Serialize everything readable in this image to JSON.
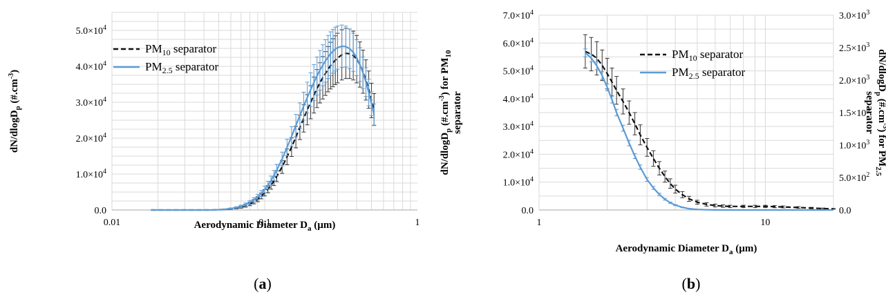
{
  "chart_data": [
    {
      "type": "line",
      "panel_label_open": "(",
      "panel_label_letter": "a",
      "panel_label_close": ")",
      "x_scale": "log",
      "xlim": [
        0.01,
        1
      ],
      "ylim": [
        0,
        55000
      ],
      "x_ticks": [
        "0.01",
        "0.1",
        "1"
      ],
      "y_ticks": [
        {
          "v": 0,
          "mant": "0.0",
          "exp": ""
        },
        {
          "v": 10000,
          "mant": "1.0×10",
          "exp": "4"
        },
        {
          "v": 20000,
          "mant": "2.0×10",
          "exp": "4"
        },
        {
          "v": 30000,
          "mant": "3.0×10",
          "exp": "4"
        },
        {
          "v": 40000,
          "mant": "4.0×10",
          "exp": "4"
        },
        {
          "v": 50000,
          "mant": "5.0×10",
          "exp": "4"
        }
      ],
      "xlabel": {
        "pre": "Aerodynamic Diameter D",
        "sub": "a",
        "post": " (µm)"
      },
      "ylabel": {
        "p1": "dN/dlogD",
        "sub": "p",
        "p2": " (#.cm",
        "sup": "-3",
        "p3": ")"
      },
      "grid": true,
      "legend_position": "top-left",
      "series": [
        {
          "legend_pre": "PM",
          "legend_sub": "10",
          "legend_post": " separator",
          "color": "#111111",
          "dashed": true,
          "x": [
            0.018,
            0.02,
            0.025,
            0.03,
            0.035,
            0.04,
            0.045,
            0.05,
            0.055,
            0.06,
            0.065,
            0.07,
            0.075,
            0.08,
            0.085,
            0.09,
            0.095,
            0.1,
            0.105,
            0.11,
            0.115,
            0.12,
            0.13,
            0.14,
            0.15,
            0.16,
            0.17,
            0.18,
            0.19,
            0.2,
            0.21,
            0.22,
            0.23,
            0.24,
            0.25,
            0.26,
            0.27,
            0.28,
            0.29,
            0.3,
            0.32,
            0.34,
            0.36,
            0.38,
            0.4,
            0.42,
            0.44,
            0.46,
            0.48,
            0.5,
            0.52
          ],
          "y": [
            0,
            0,
            0,
            0,
            0,
            0,
            0,
            50,
            150,
            300,
            500,
            800,
            1200,
            1700,
            2300,
            3000,
            3900,
            4800,
            5800,
            6900,
            8100,
            9400,
            12000,
            14800,
            17500,
            20300,
            23000,
            25500,
            27900,
            30000,
            32000,
            33800,
            35400,
            36800,
            38000,
            39200,
            40200,
            41000,
            41700,
            42300,
            43200,
            43600,
            43500,
            43000,
            42000,
            40500,
            38500,
            36200,
            33500,
            30500,
            28000
          ],
          "err": [
            0,
            0,
            0,
            0,
            0,
            0,
            0,
            50,
            100,
            150,
            200,
            300,
            400,
            500,
            600,
            700,
            800,
            900,
            1000,
            1100,
            1300,
            1500,
            1800,
            2200,
            2600,
            3000,
            3400,
            3800,
            4200,
            4600,
            5000,
            5300,
            5600,
            5900,
            6100,
            6300,
            6500,
            6700,
            6800,
            6900,
            7000,
            7000,
            6900,
            6800,
            6600,
            6300,
            6000,
            5600,
            5200,
            4800,
            4400
          ]
        },
        {
          "legend_pre": "PM",
          "legend_sub": "2.5",
          "legend_post": " separator",
          "color": "#5b9bd5",
          "dashed": false,
          "x": [
            0.018,
            0.02,
            0.025,
            0.03,
            0.035,
            0.04,
            0.045,
            0.05,
            0.055,
            0.06,
            0.065,
            0.07,
            0.075,
            0.08,
            0.085,
            0.09,
            0.095,
            0.1,
            0.105,
            0.11,
            0.115,
            0.12,
            0.13,
            0.14,
            0.15,
            0.16,
            0.17,
            0.18,
            0.19,
            0.2,
            0.21,
            0.22,
            0.23,
            0.24,
            0.25,
            0.26,
            0.27,
            0.28,
            0.29,
            0.3,
            0.32,
            0.34,
            0.36,
            0.38,
            0.4,
            0.42,
            0.44,
            0.46,
            0.48,
            0.5,
            0.52
          ],
          "y": [
            0,
            0,
            0,
            0,
            0,
            0,
            0,
            80,
            200,
            400,
            650,
            1000,
            1500,
            2100,
            2800,
            3600,
            4600,
            5700,
            6900,
            8200,
            9600,
            11100,
            14200,
            17400,
            20500,
            23500,
            26300,
            28900,
            31300,
            33500,
            35500,
            37300,
            38900,
            40300,
            41500,
            42600,
            43500,
            44200,
            44800,
            45200,
            45600,
            45500,
            44900,
            43900,
            42400,
            40500,
            38200,
            35600,
            32700,
            29600,
            26500
          ],
          "err": [
            0,
            0,
            0,
            0,
            0,
            0,
            0,
            60,
            120,
            180,
            250,
            350,
            450,
            550,
            650,
            750,
            850,
            950,
            1100,
            1250,
            1400,
            1600,
            1900,
            2300,
            2700,
            3100,
            3500,
            3900,
            4300,
            4700,
            5000,
            5300,
            5500,
            5700,
            5900,
            6000,
            6100,
            6100,
            6100,
            6000,
            5900,
            5700,
            5500,
            5300,
            5000,
            4700,
            4400,
            4000,
            3700,
            3300,
            3000
          ]
        }
      ]
    },
    {
      "type": "line",
      "panel_label_open": "(",
      "panel_label_letter": "b",
      "panel_label_close": ")",
      "x_scale": "log",
      "xlim": [
        1,
        20
      ],
      "ylim": [
        0,
        70000
      ],
      "y2lim": [
        0,
        3000
      ],
      "x_ticks": [
        "1",
        "10"
      ],
      "y_ticks": [
        {
          "v": 0,
          "mant": "0.0",
          "exp": ""
        },
        {
          "v": 10000,
          "mant": "1.0×10",
          "exp": "4"
        },
        {
          "v": 20000,
          "mant": "2.0×10",
          "exp": "4"
        },
        {
          "v": 30000,
          "mant": "3.0×10",
          "exp": "4"
        },
        {
          "v": 40000,
          "mant": "4.0×10",
          "exp": "4"
        },
        {
          "v": 50000,
          "mant": "5.0×10",
          "exp": "4"
        },
        {
          "v": 60000,
          "mant": "6.0×10",
          "exp": "4"
        },
        {
          "v": 70000,
          "mant": "7.0×10",
          "exp": "4"
        }
      ],
      "y2_ticks": [
        {
          "v": 0,
          "mant": "0.0",
          "exp": ""
        },
        {
          "v": 500,
          "mant": "5.0×10",
          "exp": "2"
        },
        {
          "v": 1000,
          "mant": "1.0×10",
          "exp": "3"
        },
        {
          "v": 1500,
          "mant": "1.5×10",
          "exp": "3"
        },
        {
          "v": 2000,
          "mant": "2.0×10",
          "exp": "3"
        },
        {
          "v": 2500,
          "mant": "2.5×10",
          "exp": "3"
        },
        {
          "v": 3000,
          "mant": "3.0×10",
          "exp": "3"
        }
      ],
      "xlabel": {
        "pre": "Aerodynamic Diameter D",
        "sub": "a",
        "post": " (µm)"
      },
      "ylabel": {
        "p1": "dN/dlogD",
        "sub": "p",
        "p2": " (#.cm",
        "sup": "-3",
        "p3": ")  for PM",
        "sub2": "10",
        "line2": "separator"
      },
      "y2label": {
        "p1": "dN/dlogD",
        "sub": "p",
        "p2": " (#.cm",
        "sup": "-3",
        "p3": ") for PM",
        "sub2": "2.5",
        "line2": "separator"
      },
      "grid": true,
      "legend_position": "top-right",
      "series": [
        {
          "legend_pre": "PM",
          "legend_sub": "10",
          "legend_post": " separator",
          "color": "#111111",
          "dashed": true,
          "axis": "left",
          "x": [
            1.6,
            1.7,
            1.8,
            1.9,
            2.0,
            2.1,
            2.2,
            2.35,
            2.5,
            2.65,
            2.8,
            3.0,
            3.2,
            3.4,
            3.6,
            3.8,
            4.0,
            4.3,
            4.6,
            5.0,
            5.5,
            6.0,
            6.5,
            7.0,
            8.0,
            9.0,
            10,
            11,
            12,
            14,
            16,
            18,
            20
          ],
          "y": [
            57000,
            56000,
            54500,
            52000,
            49000,
            46000,
            43000,
            39000,
            35000,
            31000,
            27000,
            22500,
            18500,
            15000,
            12000,
            9500,
            7500,
            5500,
            4000,
            2800,
            2000,
            1600,
            1400,
            1300,
            1300,
            1300,
            1300,
            1200,
            1100,
            900,
            700,
            500,
            400
          ],
          "err": [
            6000,
            6000,
            6000,
            5500,
            5500,
            5000,
            5000,
            4500,
            4200,
            4000,
            3600,
            3200,
            2800,
            2400,
            2000,
            1700,
            1400,
            1100,
            900,
            700,
            600,
            500,
            450,
            400,
            400,
            400,
            400,
            380,
            350,
            300,
            250,
            200,
            150
          ]
        },
        {
          "legend_pre": "PM",
          "legend_sub": "2.5",
          "legend_post": " separator",
          "color": "#5b9bd5",
          "dashed": false,
          "axis": "right",
          "x": [
            1.6,
            1.7,
            1.8,
            1.9,
            2.0,
            2.1,
            2.2,
            2.35,
            2.5,
            2.65,
            2.8,
            3.0,
            3.2,
            3.4,
            3.6,
            3.8,
            4.0,
            4.3,
            4.6,
            5.0,
            5.5,
            6.0,
            6.5,
            7.0,
            8.0,
            9.0,
            10,
            11,
            12,
            14,
            16,
            18,
            20
          ],
          "y": [
            2420,
            2340,
            2220,
            2070,
            1890,
            1700,
            1500,
            1260,
            1030,
            830,
            660,
            470,
            340,
            240,
            165,
            112,
            75,
            40,
            20,
            8,
            3,
            1,
            0,
            0,
            0,
            0,
            0,
            0,
            0,
            0,
            0,
            0,
            0
          ],
          "err": [
            60,
            60,
            60,
            58,
            55,
            52,
            50,
            46,
            42,
            38,
            34,
            28,
            22,
            18,
            14,
            10,
            8,
            5,
            3,
            2,
            1,
            0,
            0,
            0,
            0,
            0,
            0,
            0,
            0,
            0,
            0,
            0,
            0
          ]
        }
      ]
    }
  ]
}
